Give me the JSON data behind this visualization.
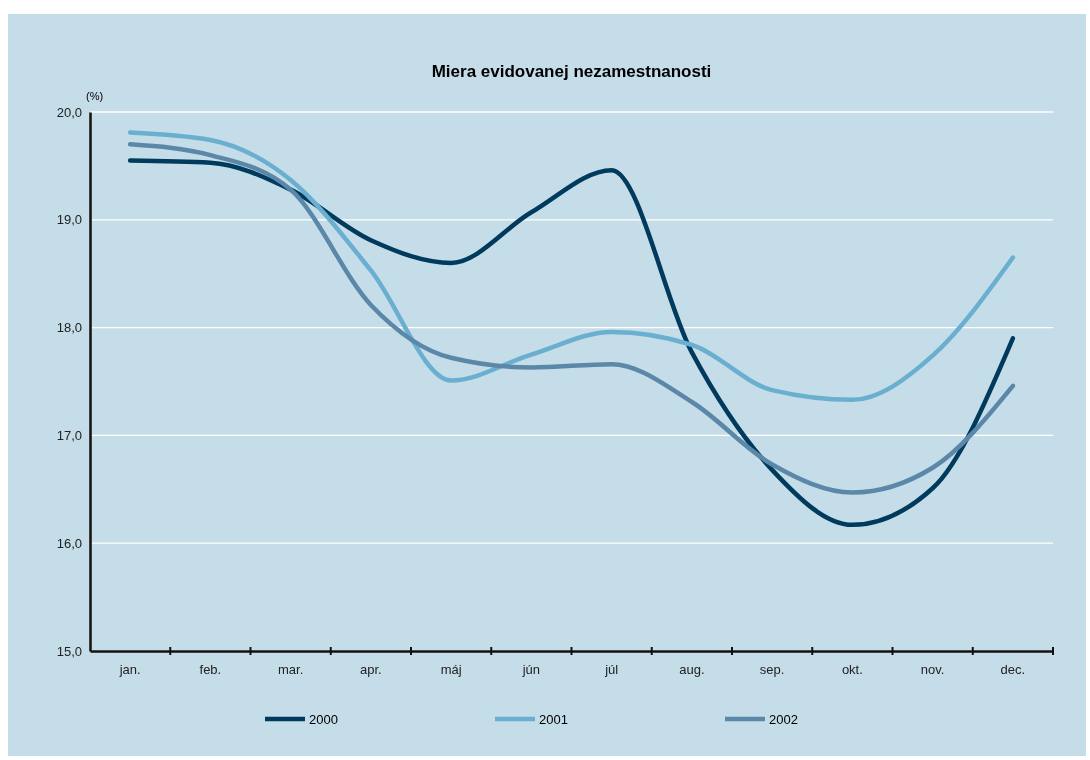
{
  "chart_data": {
    "type": "line",
    "title": "Miera evidovanej nezamestnanosti",
    "ylabel": "(%)",
    "categories": [
      "jan.",
      "feb.",
      "mar.",
      "apr.",
      "máj",
      "jún",
      "júl",
      "aug.",
      "sep.",
      "okt.",
      "nov.",
      "dec."
    ],
    "series": [
      {
        "name": "2000",
        "color": "#003a5c",
        "values": [
          19.55,
          19.53,
          19.28,
          18.81,
          18.6,
          19.07,
          19.46,
          17.77,
          16.68,
          16.17,
          16.51,
          17.9
        ]
      },
      {
        "name": "2001",
        "color": "#6aafcf",
        "values": [
          19.81,
          19.74,
          19.37,
          18.53,
          17.51,
          17.75,
          17.96,
          17.84,
          17.42,
          17.33,
          17.74,
          18.65
        ]
      },
      {
        "name": "2002",
        "color": "#5b88a8",
        "values": [
          19.7,
          19.6,
          19.28,
          18.21,
          17.72,
          17.63,
          17.66,
          17.31,
          16.73,
          16.47,
          16.7,
          17.46
        ]
      }
    ],
    "ylim": [
      15,
      20
    ],
    "yticks": [
      {
        "value": 15,
        "label": "15,0"
      },
      {
        "value": 16,
        "label": "16,0"
      },
      {
        "value": 17,
        "label": "17,0"
      },
      {
        "value": 18,
        "label": "18,0"
      },
      {
        "value": 19,
        "label": "19,0"
      },
      {
        "value": 20,
        "label": "20,0"
      }
    ],
    "grid": "y",
    "legend": "bottom",
    "marker": "none",
    "line_style": "solid"
  }
}
